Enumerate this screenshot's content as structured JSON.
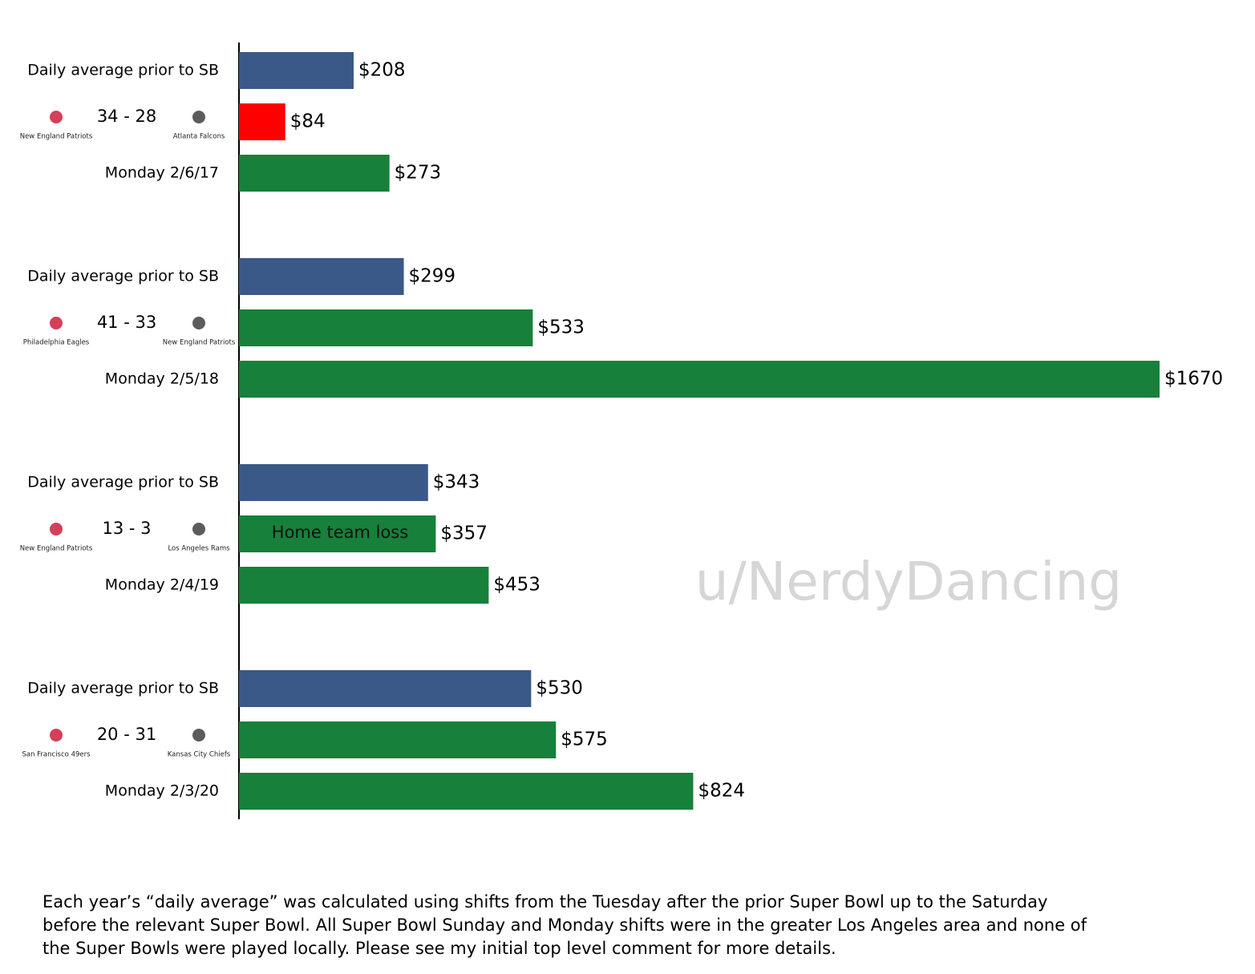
{
  "chart_data": {
    "type": "bar",
    "orientation": "horizontal",
    "categories": [
      "Daily average prior to SB",
      "34 - 28",
      "Monday 2/6/17",
      "Daily average prior to SB",
      "41 - 33",
      "Monday 2/5/18",
      "Daily average prior to SB",
      "13 - 3",
      "Monday 2/4/19",
      "Daily average prior to SB",
      "20 - 31",
      "Monday 2/3/20"
    ],
    "teams": [
      [
        "New England Patriots",
        "Atlanta Falcons"
      ],
      [
        "Philadelphia Eagles",
        "New England Patriots"
      ],
      [
        "New England Patriots",
        "Los Angeles Rams"
      ],
      [
        "San Francisco 49ers",
        "Kansas City Chiefs"
      ]
    ],
    "values": [
      208,
      84,
      273,
      299,
      533,
      1670,
      343,
      357,
      453,
      530,
      575,
      824
    ],
    "value_labels": [
      "$208",
      "$84",
      "$273",
      "$299",
      "$533",
      "$1670",
      "$343",
      "$357",
      "$453",
      "$530",
      "$575",
      "$824"
    ],
    "colors": [
      "#3a5888",
      "#ff0000",
      "#17803a",
      "#3a5888",
      "#17803a",
      "#17803a",
      "#3a5888",
      "#17803a",
      "#17803a",
      "#3a5888",
      "#17803a",
      "#17803a"
    ],
    "xlim": [
      0,
      1670
    ],
    "annotation": {
      "index": 7,
      "text": "Home team loss"
    },
    "watermark": "u/NerdyDancing",
    "footnote": [
      "Each year’s “daily average” was calculated using shifts from the Tuesday after the prior Super Bowl up to the Saturday",
      "before the relevant Super Bowl. All Super Bowl Sunday and Monday shifts were in the greater Los Angeles area and none of",
      "the Super Bowls were played locally. Please see my initial top level comment for more details."
    ]
  }
}
